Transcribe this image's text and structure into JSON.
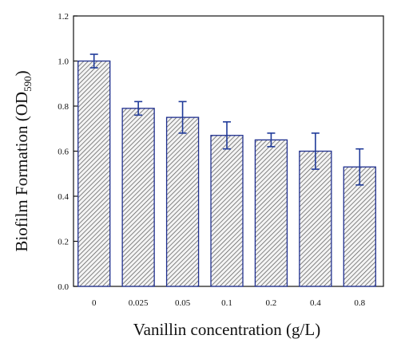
{
  "chart_data": {
    "type": "bar",
    "categories": [
      "0",
      "0.025",
      "0.05",
      "0.1",
      "0.2",
      "0.4",
      "0.8"
    ],
    "values": [
      1.0,
      0.79,
      0.75,
      0.67,
      0.65,
      0.6,
      0.53
    ],
    "errors": [
      0.03,
      0.03,
      0.07,
      0.06,
      0.03,
      0.08,
      0.08
    ],
    "xlabel": "Vanillin concentration (g/L)",
    "ylabel_main": "Biofilm Formation (OD",
    "ylabel_sub": "590",
    "ylabel_end": ")",
    "ylim": [
      0.0,
      1.2
    ],
    "yticks": [
      0.0,
      0.2,
      0.4,
      0.6,
      0.8,
      1.0,
      1.2
    ],
    "ytick_labels": [
      "0.0",
      "0.2",
      "0.4",
      "0.6",
      "0.8",
      "1.0",
      "1.2"
    ],
    "grid": false,
    "colors": {
      "bar_border": "#1f2f8f",
      "bar_hatch": "#555555",
      "error_bar": "#1f3a99",
      "axis": "#111111"
    }
  }
}
